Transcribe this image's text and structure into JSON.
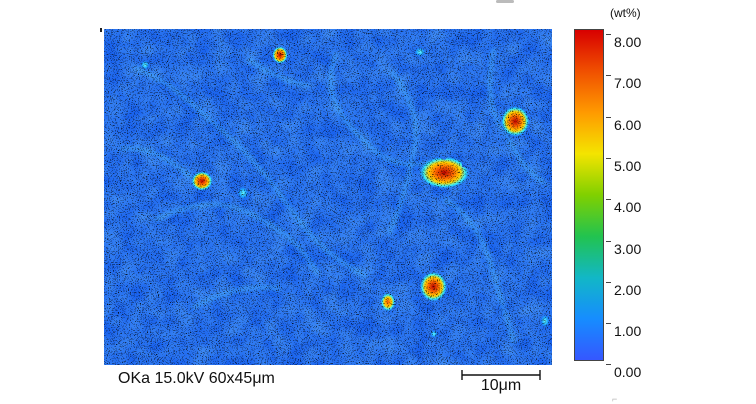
{
  "caption": "OKa 15.0kV 60x45μm",
  "scale_bar": {
    "label": "10μm"
  },
  "colorbar": {
    "unit": "(wt%)",
    "labels": [
      "8.00",
      "7.00",
      "6.00",
      "5.00",
      "4.00",
      "3.00",
      "2.00",
      "1.00",
      "0.00"
    ],
    "colors": [
      "#d80000",
      "#f05000",
      "#ff9a00",
      "#f4e400",
      "#80d000",
      "#22c34f",
      "#12b7c6",
      "#168dff",
      "#3557ff"
    ]
  },
  "map": {
    "background_color": "#1a63ee",
    "speckle_color": "#0b1020",
    "noise_color": "#46a7ff"
  }
}
